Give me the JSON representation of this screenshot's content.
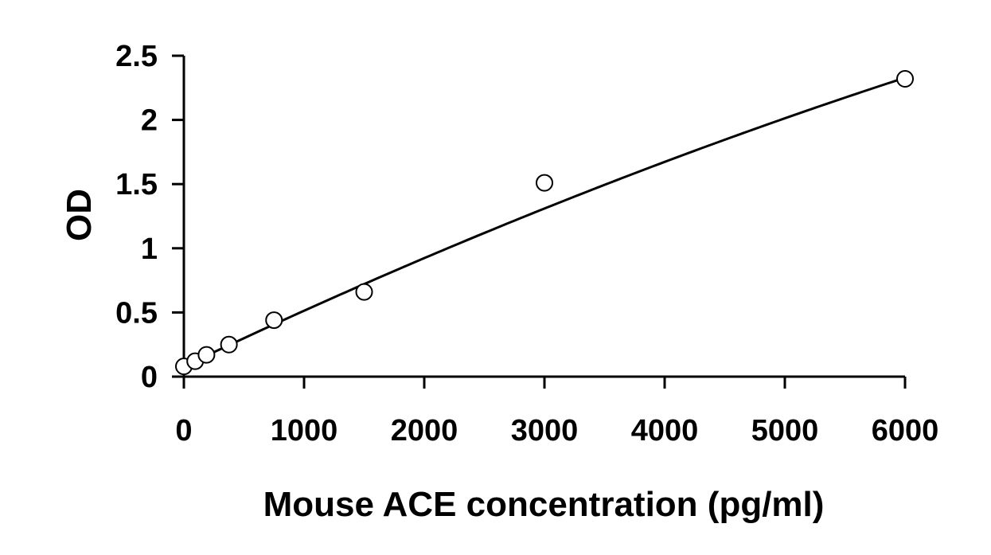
{
  "chart_data": {
    "type": "scatter",
    "xlabel": "Mouse ACE concentration (pg/ml)",
    "ylabel": "OD",
    "xlim": [
      0,
      6000
    ],
    "ylim": [
      0,
      2.5
    ],
    "xticks": [
      0,
      1000,
      2000,
      3000,
      4000,
      5000,
      6000
    ],
    "yticks": [
      0,
      0.5,
      1,
      1.5,
      2,
      2.5
    ],
    "xtick_labels": [
      "0",
      "1000",
      "2000",
      "3000",
      "4000",
      "5000",
      "6000"
    ],
    "ytick_labels": [
      "0",
      "0.5",
      "1",
      "1.5",
      "2",
      "2.5"
    ],
    "grid": false,
    "series": [
      {
        "marker": "open-circle",
        "points": [
          {
            "x": 0,
            "y": 0.08
          },
          {
            "x": 94,
            "y": 0.12
          },
          {
            "x": 188,
            "y": 0.17
          },
          {
            "x": 375,
            "y": 0.25
          },
          {
            "x": 750,
            "y": 0.44
          },
          {
            "x": 1500,
            "y": 0.66
          },
          {
            "x": 3000,
            "y": 1.51
          },
          {
            "x": 6000,
            "y": 2.32
          }
        ]
      }
    ],
    "fit_curve": {
      "type": "polynomial",
      "coefficients": [
        0.08,
        0.000445,
        -1.17e-08
      ]
    }
  }
}
